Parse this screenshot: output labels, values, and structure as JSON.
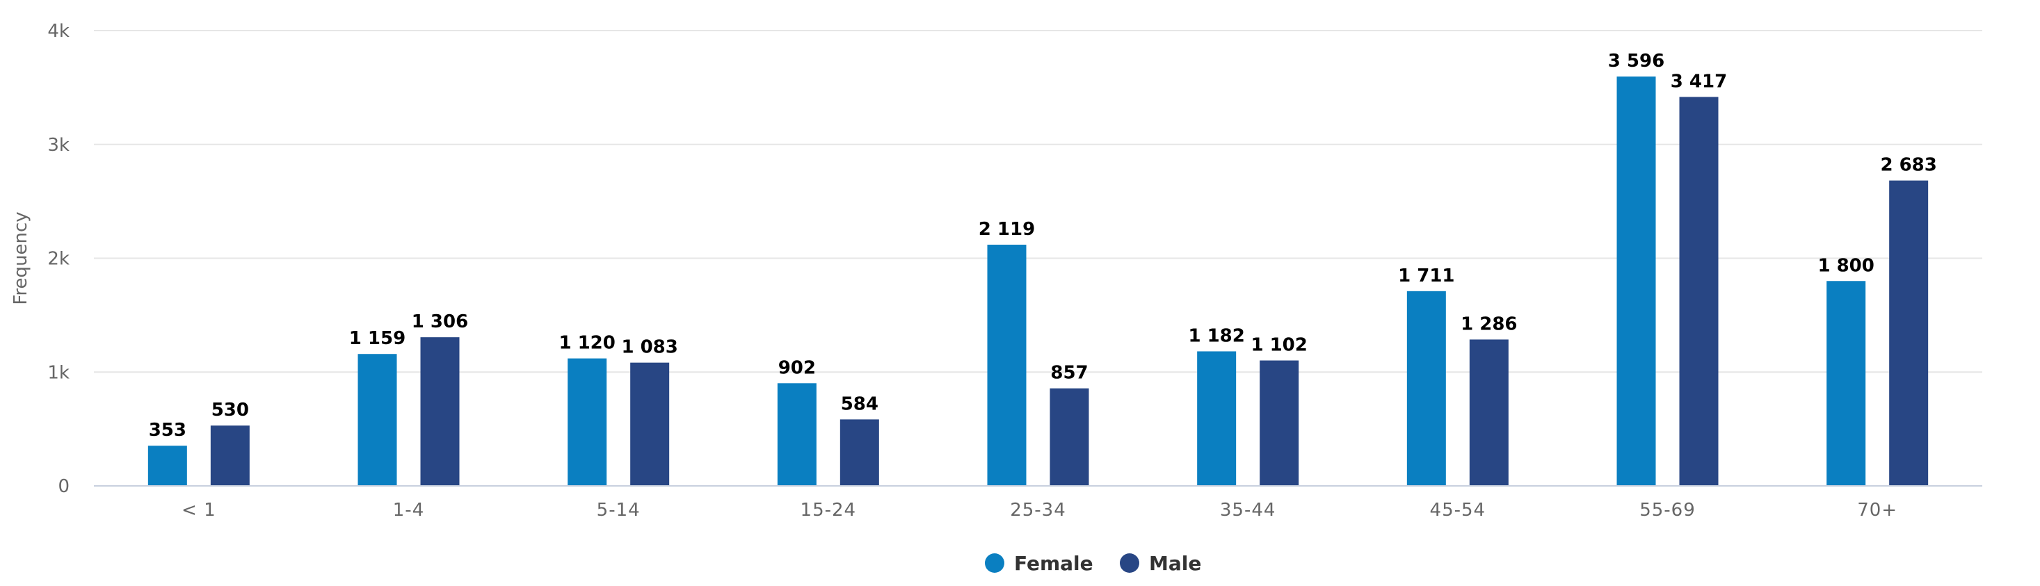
{
  "chart_data": {
    "type": "bar",
    "title": "",
    "xlabel": "",
    "ylabel": "Frequency",
    "ylim": [
      0,
      4000
    ],
    "yticks": [
      {
        "value": 0,
        "label": "0"
      },
      {
        "value": 1000,
        "label": "1k"
      },
      {
        "value": 2000,
        "label": "2k"
      },
      {
        "value": 3000,
        "label": "3k"
      },
      {
        "value": 4000,
        "label": "4k"
      }
    ],
    "categories": [
      "< 1",
      "1-4",
      "5-14",
      "15-24",
      "25-34",
      "35-44",
      "45-54",
      "55-69",
      "70+"
    ],
    "series": [
      {
        "name": "Female",
        "color": "#0a7fc1",
        "values": [
          353,
          1159,
          1120,
          902,
          2119,
          1182,
          1711,
          3596,
          1800
        ],
        "labels": [
          "353",
          "1 159",
          "1 120",
          "902",
          "2 119",
          "1 182",
          "1 711",
          "3 596",
          "1 800"
        ]
      },
      {
        "name": "Male",
        "color": "#284684",
        "values": [
          530,
          1306,
          1083,
          584,
          857,
          1102,
          1286,
          3417,
          2683
        ],
        "labels": [
          "530",
          "1 306",
          "1 083",
          "584",
          "857",
          "1 102",
          "1 286",
          "3 417",
          "2 683"
        ]
      }
    ],
    "legend_position": "bottom-center",
    "grid": true
  }
}
